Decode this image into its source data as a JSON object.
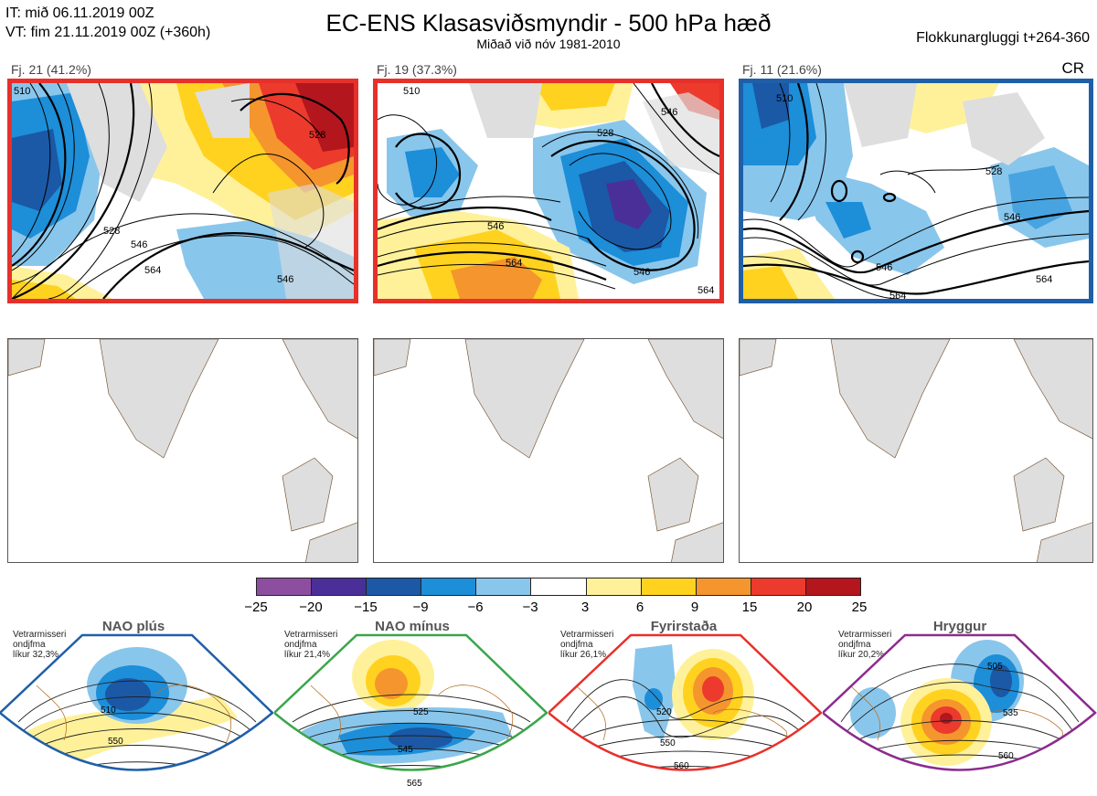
{
  "header": {
    "it_line": "IT: mið 06.11.2019 00Z",
    "vt_line": "VT: fim 21.11.2019 00Z  (+360h)",
    "title": "EC-ENS Klasasviðsmyndir - 500 hPa hæð",
    "subtitle": "Miðað við nóv 1981-2010",
    "window": "Flokkunargluggi t+264-360",
    "corner_tag": "CR"
  },
  "clusters": [
    {
      "label": "Fj. 21 (41.2%)",
      "frame_color": "#e8302a",
      "contour_labels": [
        "510",
        "528",
        "546",
        "564",
        "546",
        "528"
      ]
    },
    {
      "label": "Fj. 19 (37.3%)",
      "frame_color": "#e8302a",
      "contour_labels": [
        "528",
        "546",
        "546",
        "564",
        "546",
        "564",
        "510"
      ]
    },
    {
      "label": "Fj. 11 (21.6%)",
      "frame_color": "#1f5fa8",
      "contour_labels": [
        "510",
        "528",
        "546",
        "546",
        "564",
        "564"
      ]
    }
  ],
  "colorbar": {
    "colors": [
      "#8e4ea0",
      "#4a2f98",
      "#1b58a6",
      "#1d8ed8",
      "#89c6ec",
      "#ffffff",
      "#fff19a",
      "#ffd21f",
      "#f5952e",
      "#ec3a2c",
      "#b3161d"
    ],
    "ticks": [
      "−25",
      "−20",
      "−15",
      "−9",
      "−6",
      "−3",
      "3",
      "6",
      "9",
      "15",
      "20",
      "25"
    ]
  },
  "regimes": [
    {
      "name": "NAO plús",
      "note_lines": [
        "Vetrarmisseri",
        "ondjfma",
        "líkur 32,3%"
      ],
      "color": "#1f5fa8",
      "dot_color": "#1a5ca6",
      "contour_labels": [
        "510",
        "550"
      ]
    },
    {
      "name": "NAO mínus",
      "note_lines": [
        "Vetrarmisseri",
        "ondjfma",
        "líkur 21,4%"
      ],
      "color": "#3aa64a",
      "dot_color": "#2faa4a",
      "contour_labels": [
        "525",
        "545",
        "565"
      ]
    },
    {
      "name": "Fyrirstaða",
      "note_lines": [
        "Vetrarmisseri",
        "ondjfma",
        "líkur 26,1%"
      ],
      "color": "#e8302a",
      "dot_color": "#e8302a",
      "contour_labels": [
        "520",
        "550",
        "560"
      ]
    },
    {
      "name": "Hryggur",
      "note_lines": [
        "Vetrarmisseri",
        "ondjfma",
        "líkur 20,2%"
      ],
      "color": "#8c2b8e",
      "dot_color": "#ee82ee",
      "contour_labels": [
        "505",
        "535",
        "560"
      ]
    }
  ]
}
